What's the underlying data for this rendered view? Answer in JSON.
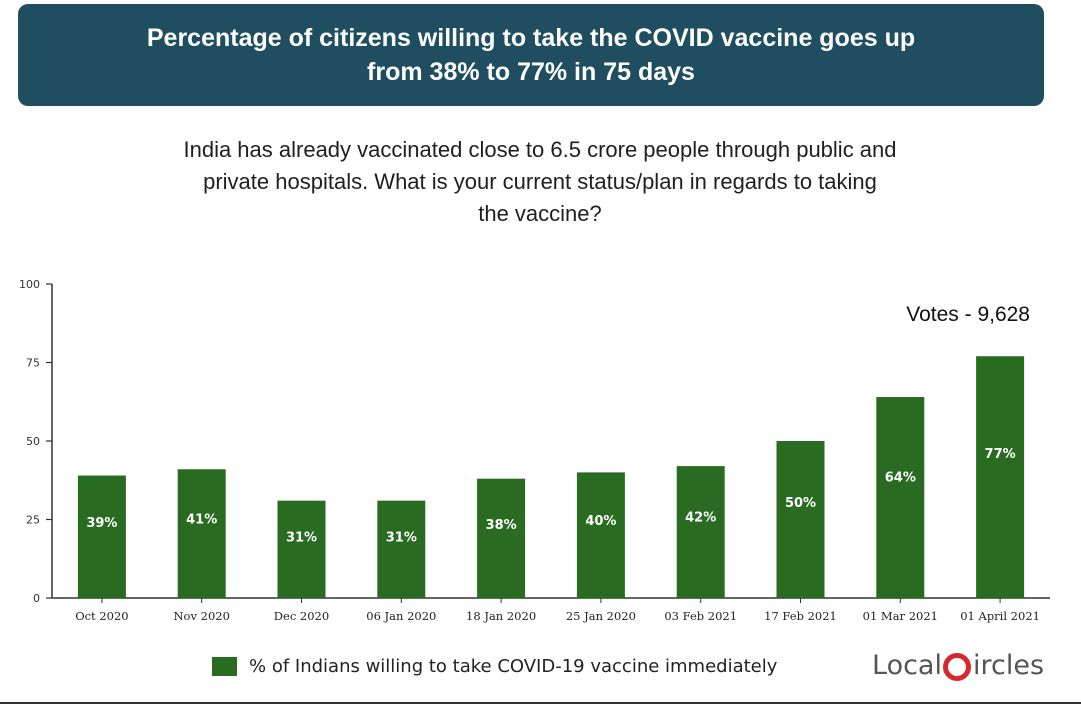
{
  "banner": {
    "title": "Percentage of citizens willing to take the COVID vaccine goes up\nfrom 38% to 77% in 75 days"
  },
  "question": "India has already vaccinated close to 6.5 crore people through public and\nprivate hospitals. What is your current status/plan in regards to taking\nthe vaccine?",
  "legend": {
    "label": "% of Indians willing to take COVID-19 vaccine immediately",
    "color": "#2a6b22"
  },
  "logo": {
    "text": "LocalCircles",
    "part1": "Local",
    "part2": "ircles",
    "accent_color": "#d9272e"
  },
  "chart_data": {
    "type": "bar",
    "categories": [
      "Oct 2020",
      "Nov 2020",
      "Dec 2020",
      "06 Jan 2020",
      "18 Jan 2020",
      "25 Jan 2020",
      "03 Feb 2021",
      "17 Feb 2021",
      "01 Mar 2021",
      "01 April 2021"
    ],
    "values": [
      39,
      41,
      31,
      31,
      38,
      40,
      42,
      50,
      64,
      77
    ],
    "data_labels": [
      "39%",
      "41%",
      "31%",
      "31%",
      "38%",
      "40%",
      "42%",
      "50%",
      "64%",
      "77%"
    ],
    "ylim": [
      0,
      100
    ],
    "yticks": [
      0,
      25,
      50,
      75,
      100
    ],
    "annotation": "Votes - 9,628",
    "bar_color": "#2a6b22",
    "grid": false
  }
}
